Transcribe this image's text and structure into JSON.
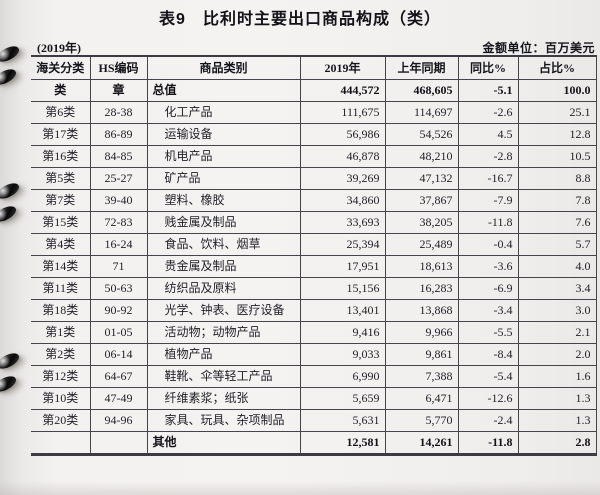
{
  "title": "表9　比利时主要出口商品构成（类）",
  "meta": {
    "year_note": "(2019年)",
    "unit_note": "金额单位：百万美元"
  },
  "decor": {
    "binding_icon": "spiral-binding-ring-icon",
    "ring_color": "#1c1c1c",
    "paper_color": "#f2f0ee",
    "line_color": "#46454b"
  },
  "table": {
    "columns": [
      "海关分类",
      "HS编码",
      "商品类别",
      "2019年",
      "上年同期",
      "同比%",
      "占比%"
    ],
    "rows": [
      {
        "cls": "类",
        "hs": "章",
        "name": "总值",
        "v2019": "444,572",
        "prev": "468,605",
        "yoy": "-5.1",
        "share": "100.0",
        "bold": true
      },
      {
        "cls": "第6类",
        "hs": "28-38",
        "name": "化工产品",
        "v2019": "111,675",
        "prev": "114,697",
        "yoy": "-2.6",
        "share": "25.1",
        "bold": false
      },
      {
        "cls": "第17类",
        "hs": "86-89",
        "name": "运输设备",
        "v2019": "56,986",
        "prev": "54,526",
        "yoy": "4.5",
        "share": "12.8",
        "bold": false
      },
      {
        "cls": "第16类",
        "hs": "84-85",
        "name": "机电产品",
        "v2019": "46,878",
        "prev": "48,210",
        "yoy": "-2.8",
        "share": "10.5",
        "bold": false
      },
      {
        "cls": "第5类",
        "hs": "25-27",
        "name": "矿产品",
        "v2019": "39,269",
        "prev": "47,132",
        "yoy": "-16.7",
        "share": "8.8",
        "bold": false
      },
      {
        "cls": "第7类",
        "hs": "39-40",
        "name": "塑料、橡胶",
        "v2019": "34,860",
        "prev": "37,867",
        "yoy": "-7.9",
        "share": "7.8",
        "bold": false
      },
      {
        "cls": "第15类",
        "hs": "72-83",
        "name": "贱金属及制品",
        "v2019": "33,693",
        "prev": "38,205",
        "yoy": "-11.8",
        "share": "7.6",
        "bold": false
      },
      {
        "cls": "第4类",
        "hs": "16-24",
        "name": "食品、饮料、烟草",
        "v2019": "25,394",
        "prev": "25,489",
        "yoy": "-0.4",
        "share": "5.7",
        "bold": false
      },
      {
        "cls": "第14类",
        "hs": "71",
        "name": "贵金属及制品",
        "v2019": "17,951",
        "prev": "18,613",
        "yoy": "-3.6",
        "share": "4.0",
        "bold": false
      },
      {
        "cls": "第11类",
        "hs": "50-63",
        "name": "纺织品及原料",
        "v2019": "15,156",
        "prev": "16,283",
        "yoy": "-6.9",
        "share": "3.4",
        "bold": false
      },
      {
        "cls": "第18类",
        "hs": "90-92",
        "name": "光学、钟表、医疗设备",
        "v2019": "13,401",
        "prev": "13,868",
        "yoy": "-3.4",
        "share": "3.0",
        "bold": false
      },
      {
        "cls": "第1类",
        "hs": "01-05",
        "name": "活动物；动物产品",
        "v2019": "9,416",
        "prev": "9,966",
        "yoy": "-5.5",
        "share": "2.1",
        "bold": false
      },
      {
        "cls": "第2类",
        "hs": "06-14",
        "name": "植物产品",
        "v2019": "9,033",
        "prev": "9,861",
        "yoy": "-8.4",
        "share": "2.0",
        "bold": false
      },
      {
        "cls": "第12类",
        "hs": "64-67",
        "name": "鞋靴、伞等轻工产品",
        "v2019": "6,990",
        "prev": "7,388",
        "yoy": "-5.4",
        "share": "1.6",
        "bold": false
      },
      {
        "cls": "第10类",
        "hs": "47-49",
        "name": "纤维素浆；纸张",
        "v2019": "5,659",
        "prev": "6,471",
        "yoy": "-12.6",
        "share": "1.3",
        "bold": false
      },
      {
        "cls": "第20类",
        "hs": "94-96",
        "name": "家具、玩具、杂项制品",
        "v2019": "5,631",
        "prev": "5,770",
        "yoy": "-2.4",
        "share": "1.3",
        "bold": false
      },
      {
        "cls": "",
        "hs": "",
        "name": "其他",
        "v2019": "12,581",
        "prev": "14,261",
        "yoy": "-11.8",
        "share": "2.8",
        "bold": true
      }
    ]
  }
}
